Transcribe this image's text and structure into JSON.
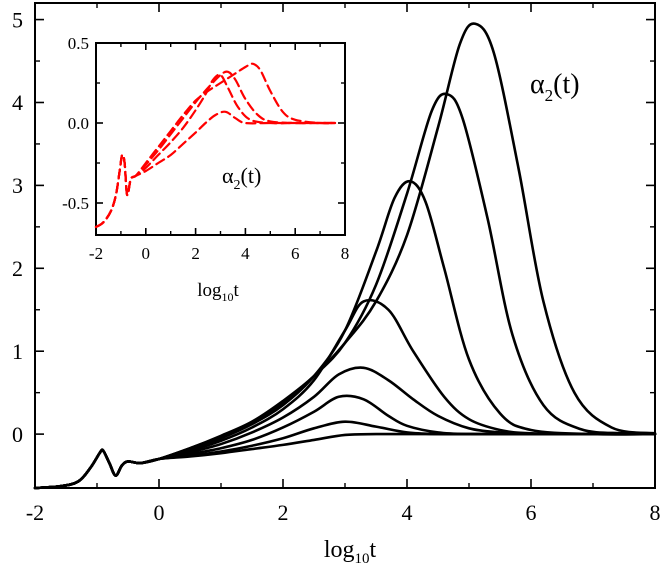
{
  "chart_data": [
    {
      "type": "line",
      "title": "",
      "annotation": {
        "base": "α",
        "sub": "2",
        "rest": "(t)"
      },
      "xlabel": {
        "base": "log",
        "sub": "10",
        "rest": "t"
      },
      "ylabel": "",
      "xlim": [
        -2,
        8
      ],
      "ylim": [
        -0.65,
        5.2
      ],
      "xticks": [
        -2,
        0,
        2,
        4,
        6,
        8
      ],
      "xtick_labels": [
        "-2",
        "0",
        "2",
        "4",
        "6",
        "8"
      ],
      "yticks": [
        0,
        1,
        2,
        3,
        4,
        5
      ],
      "ytick_labels": [
        "0",
        "1",
        "2",
        "3",
        "4",
        "5"
      ],
      "grid": false,
      "color": "#000000",
      "series": [
        {
          "name": "curve 1",
          "x": [
            -2.0,
            -1.6,
            -1.3,
            -1.1,
            -0.95,
            -0.9,
            -0.8,
            -0.7,
            -0.6,
            -0.5,
            -0.3,
            0,
            0.5,
            1,
            1.5,
            2,
            2.5,
            3,
            3.5,
            4,
            5,
            6,
            7,
            8
          ],
          "y": [
            -0.65,
            -0.63,
            -0.57,
            -0.4,
            -0.22,
            -0.2,
            -0.35,
            -0.5,
            -0.38,
            -0.33,
            -0.35,
            -0.3,
            -0.27,
            -0.23,
            -0.18,
            -0.13,
            -0.07,
            -0.01,
            0.0,
            0.0,
            0.0,
            0.0,
            0.0,
            0.0
          ]
        },
        {
          "name": "curve 2",
          "x": [
            -2.0,
            -1.6,
            -1.3,
            -1.1,
            -0.95,
            -0.9,
            -0.8,
            -0.7,
            -0.6,
            -0.5,
            -0.3,
            0,
            0.5,
            1,
            1.5,
            2,
            2.5,
            3,
            3.5,
            4,
            4.5,
            5,
            6,
            7,
            8
          ],
          "y": [
            -0.65,
            -0.63,
            -0.57,
            -0.4,
            -0.22,
            -0.2,
            -0.35,
            -0.5,
            -0.38,
            -0.33,
            -0.35,
            -0.3,
            -0.26,
            -0.21,
            -0.14,
            -0.05,
            0.07,
            0.15,
            0.09,
            0.02,
            0.0,
            0.0,
            0.0,
            0.0,
            0.0
          ]
        },
        {
          "name": "curve 3",
          "x": [
            -2.0,
            -1.6,
            -1.3,
            -1.1,
            -0.95,
            -0.9,
            -0.8,
            -0.7,
            -0.6,
            -0.5,
            -0.3,
            0,
            0.5,
            1,
            1.5,
            2,
            2.5,
            2.9,
            3.3,
            3.7,
            4,
            4.5,
            5,
            6,
            7,
            8
          ],
          "y": [
            -0.65,
            -0.63,
            -0.57,
            -0.4,
            -0.22,
            -0.2,
            -0.35,
            -0.5,
            -0.38,
            -0.33,
            -0.35,
            -0.3,
            -0.24,
            -0.17,
            -0.07,
            0.08,
            0.27,
            0.45,
            0.42,
            0.22,
            0.1,
            0.02,
            0.0,
            0.0,
            0.0,
            0.0
          ]
        },
        {
          "name": "curve 4",
          "x": [
            -2.0,
            -1.6,
            -1.3,
            -1.1,
            -0.95,
            -0.9,
            -0.8,
            -0.7,
            -0.6,
            -0.5,
            -0.3,
            0,
            0.5,
            1,
            1.5,
            2,
            2.5,
            2.9,
            3.3,
            3.7,
            4.1,
            4.5,
            5,
            5.5,
            6,
            7,
            8
          ],
          "y": [
            -0.65,
            -0.63,
            -0.57,
            -0.4,
            -0.22,
            -0.2,
            -0.35,
            -0.5,
            -0.38,
            -0.33,
            -0.35,
            -0.3,
            -0.22,
            -0.12,
            0.02,
            0.2,
            0.45,
            0.72,
            0.8,
            0.65,
            0.42,
            0.22,
            0.07,
            0.02,
            0.0,
            0.0,
            0.0
          ]
        },
        {
          "name": "curve 5",
          "x": [
            -2.0,
            -1.6,
            -1.3,
            -1.1,
            -0.95,
            -0.9,
            -0.8,
            -0.7,
            -0.6,
            -0.5,
            -0.3,
            0,
            0.5,
            1,
            1.5,
            2,
            2.5,
            3,
            3.3,
            3.7,
            4.1,
            4.6,
            5,
            5.5,
            6,
            7,
            8
          ],
          "y": [
            -0.65,
            -0.63,
            -0.57,
            -0.4,
            -0.22,
            -0.2,
            -0.35,
            -0.5,
            -0.38,
            -0.33,
            -0.35,
            -0.3,
            -0.2,
            -0.08,
            0.08,
            0.3,
            0.65,
            1.25,
            1.6,
            1.5,
            1.0,
            0.45,
            0.18,
            0.05,
            0.01,
            0.0,
            0.0
          ]
        },
        {
          "name": "curve 6",
          "x": [
            -2.0,
            -1.6,
            -1.3,
            -1.1,
            -0.95,
            -0.9,
            -0.8,
            -0.7,
            -0.6,
            -0.5,
            -0.3,
            0,
            0.5,
            1,
            1.5,
            2,
            2.5,
            3,
            3.5,
            3.8,
            4.05,
            4.3,
            4.6,
            5,
            5.5,
            6,
            7,
            8
          ],
          "y": [
            -0.65,
            -0.63,
            -0.57,
            -0.4,
            -0.22,
            -0.2,
            -0.35,
            -0.5,
            -0.38,
            -0.33,
            -0.35,
            -0.3,
            -0.18,
            -0.05,
            0.12,
            0.35,
            0.7,
            1.25,
            2.2,
            2.85,
            3.05,
            2.8,
            2.0,
            0.9,
            0.25,
            0.05,
            0.0,
            0.0
          ]
        },
        {
          "name": "curve 7",
          "x": [
            -2.0,
            -1.6,
            -1.3,
            -1.1,
            -0.95,
            -0.9,
            -0.8,
            -0.7,
            -0.6,
            -0.5,
            -0.3,
            0,
            0.5,
            1,
            1.5,
            2,
            2.5,
            3,
            3.5,
            4,
            4.4,
            4.65,
            4.9,
            5.3,
            5.7,
            6.2,
            6.8,
            7.5,
            8
          ],
          "y": [
            -0.65,
            -0.63,
            -0.57,
            -0.4,
            -0.22,
            -0.2,
            -0.35,
            -0.5,
            -0.38,
            -0.33,
            -0.35,
            -0.3,
            -0.17,
            -0.03,
            0.13,
            0.38,
            0.7,
            1.1,
            1.8,
            2.9,
            3.9,
            4.1,
            3.8,
            2.6,
            1.2,
            0.35,
            0.06,
            0.01,
            0.0
          ]
        },
        {
          "name": "curve 8",
          "x": [
            -2.0,
            -1.6,
            -1.3,
            -1.1,
            -0.95,
            -0.9,
            -0.8,
            -0.7,
            -0.6,
            -0.5,
            -0.3,
            0,
            0.5,
            1,
            1.5,
            2,
            2.5,
            3,
            3.5,
            4,
            4.5,
            4.85,
            5.1,
            5.4,
            5.8,
            6.2,
            6.7,
            7.3,
            8
          ],
          "y": [
            -0.65,
            -0.63,
            -0.57,
            -0.4,
            -0.22,
            -0.2,
            -0.35,
            -0.5,
            -0.38,
            -0.33,
            -0.35,
            -0.3,
            -0.17,
            -0.02,
            0.15,
            0.4,
            0.7,
            1.1,
            1.6,
            2.4,
            3.7,
            4.7,
            4.95,
            4.6,
            3.2,
            1.6,
            0.5,
            0.08,
            0.01
          ]
        }
      ]
    },
    {
      "type": "line",
      "title": "",
      "annotation": {
        "base": "α",
        "sub": "2",
        "rest": "(t)"
      },
      "xlabel": {
        "base": "log",
        "sub": "10",
        "rest": "t"
      },
      "ylabel": "",
      "xlim": [
        -2,
        8
      ],
      "ylim": [
        -0.7,
        0.5
      ],
      "xticks": [
        -2,
        0,
        2,
        4,
        6,
        8
      ],
      "xtick_labels": [
        "-2",
        "0",
        "2",
        "4",
        "6",
        "8"
      ],
      "yticks": [
        0.5,
        0.0,
        -0.5
      ],
      "ytick_labels": [
        "0.5",
        "0.0",
        "-0.5"
      ],
      "grid": false,
      "color": "#ff0000",
      "line_style": "dashed",
      "series": [
        {
          "name": "inset curve 1",
          "x": [
            -2.0,
            -1.7,
            -1.4,
            -1.2,
            -1.05,
            -0.95,
            -0.85,
            -0.75,
            -0.6,
            -0.4,
            0,
            0.5,
            1,
            1.5,
            2,
            2.4,
            2.8,
            3.2,
            3.6,
            4,
            5,
            6,
            7,
            7.6
          ],
          "y": [
            -0.65,
            -0.62,
            -0.55,
            -0.45,
            -0.3,
            -0.2,
            -0.25,
            -0.45,
            -0.35,
            -0.33,
            -0.3,
            -0.25,
            -0.2,
            -0.13,
            -0.06,
            0.0,
            0.05,
            0.07,
            0.03,
            0.0,
            0.0,
            0.0,
            0.0,
            0.0
          ]
        },
        {
          "name": "inset curve 2",
          "x": [
            -2.0,
            -1.7,
            -1.4,
            -1.2,
            -1.05,
            -0.95,
            -0.85,
            -0.75,
            -0.6,
            -0.4,
            0,
            0.5,
            1,
            1.5,
            2,
            2.4,
            2.7,
            3.0,
            3.3,
            3.7,
            4.2,
            5,
            6,
            7,
            7.6
          ],
          "y": [
            -0.65,
            -0.62,
            -0.55,
            -0.45,
            -0.3,
            -0.2,
            -0.25,
            -0.45,
            -0.35,
            -0.33,
            -0.28,
            -0.2,
            -0.12,
            -0.03,
            0.08,
            0.18,
            0.27,
            0.3,
            0.22,
            0.1,
            0.02,
            0.0,
            0.0,
            0.0,
            0.0
          ]
        },
        {
          "name": "inset curve 3",
          "x": [
            -2.0,
            -1.7,
            -1.4,
            -1.2,
            -1.05,
            -0.95,
            -0.85,
            -0.75,
            -0.6,
            -0.4,
            0,
            0.5,
            1,
            1.5,
            2,
            2.5,
            3.0,
            3.3,
            3.6,
            4.0,
            4.5,
            5,
            6,
            7,
            7.6
          ],
          "y": [
            -0.65,
            -0.62,
            -0.55,
            -0.45,
            -0.3,
            -0.2,
            -0.25,
            -0.45,
            -0.35,
            -0.33,
            -0.26,
            -0.17,
            -0.07,
            0.03,
            0.13,
            0.22,
            0.3,
            0.32,
            0.27,
            0.15,
            0.05,
            0.01,
            0.0,
            0.0,
            0.0
          ]
        },
        {
          "name": "inset curve 4",
          "x": [
            -2.0,
            -1.7,
            -1.4,
            -1.2,
            -1.05,
            -0.95,
            -0.85,
            -0.75,
            -0.6,
            -0.4,
            0,
            0.5,
            1,
            1.5,
            2,
            2.5,
            3.0,
            3.5,
            4.0,
            4.3,
            4.6,
            5.0,
            5.5,
            6,
            7,
            7.6
          ],
          "y": [
            -0.65,
            -0.62,
            -0.55,
            -0.45,
            -0.3,
            -0.2,
            -0.25,
            -0.45,
            -0.35,
            -0.33,
            -0.25,
            -0.15,
            -0.05,
            0.05,
            0.14,
            0.2,
            0.25,
            0.3,
            0.35,
            0.37,
            0.33,
            0.2,
            0.07,
            0.02,
            0.0,
            0.0
          ]
        }
      ]
    }
  ]
}
